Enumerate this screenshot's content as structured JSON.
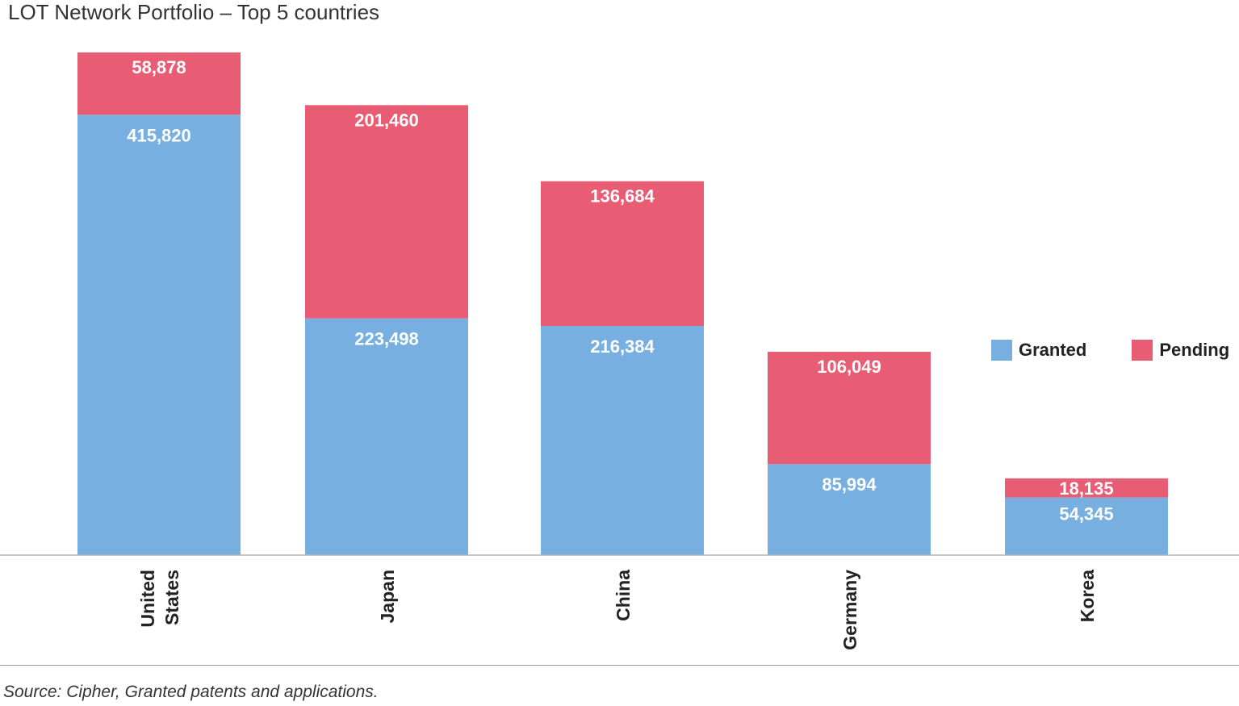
{
  "title": "LOT Network Portfolio – Top 5 countries",
  "source": "Source: Cipher, Granted patents and applications.",
  "colors": {
    "granted": "#77afe0",
    "pending": "#e95d74",
    "axis": "#b5b5b5",
    "bar_label": "#ffffff"
  },
  "legend": {
    "granted": "Granted",
    "pending": "Pending"
  },
  "chart_data": {
    "type": "bar",
    "stacked": true,
    "title": "LOT Network Portfolio – Top 5 countries",
    "xlabel": "",
    "ylabel": "",
    "categories": [
      "United States",
      "Japan",
      "China",
      "Germany",
      "Korea"
    ],
    "category_lines": [
      [
        "United",
        "States"
      ],
      [
        "Japan"
      ],
      [
        "China"
      ],
      [
        "Germany"
      ],
      [
        "Korea"
      ]
    ],
    "series": [
      {
        "name": "Granted",
        "values": [
          415820,
          223498,
          216384,
          85994,
          54345
        ],
        "labels": [
          "415,820",
          "223,498",
          "216,384",
          "85,994",
          "54,345"
        ]
      },
      {
        "name": "Pending",
        "values": [
          58878,
          201460,
          136684,
          106049,
          18135
        ],
        "labels": [
          "58,878",
          "201,460",
          "136,684",
          "106,049",
          "18,135"
        ]
      }
    ],
    "ylim": [
      0,
      474698
    ],
    "grid": false,
    "legend_position": "right"
  }
}
